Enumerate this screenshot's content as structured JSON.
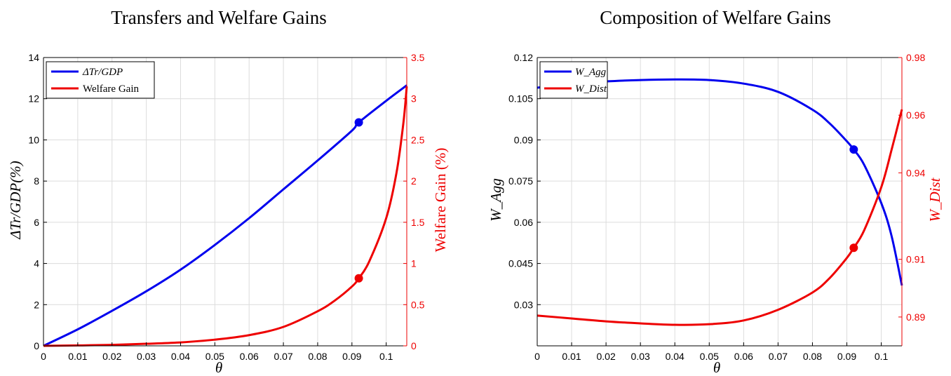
{
  "colors": {
    "blue": "#0000ee",
    "red": "#ee0000",
    "grid": "#dcdcdc",
    "axis": "#000000"
  },
  "chart_data": [
    {
      "type": "line",
      "title": "Transfers and Welfare Gains",
      "xlabel": "θ",
      "ylabel_left": "ΔTr/GDP(%)",
      "ylabel_right": "Welfare Gain (%)",
      "xlim": [
        0,
        0.106
      ],
      "ylim_left": [
        0,
        14
      ],
      "ylim_right": [
        0,
        3.5
      ],
      "xticks": [
        "0",
        "0.01",
        "0.02",
        "0.03",
        "0.04",
        "0.05",
        "0.06",
        "0.07",
        "0.08",
        "0.09",
        "0.1"
      ],
      "yticks_left": [
        "0",
        "2",
        "4",
        "6",
        "8",
        "10",
        "12",
        "14"
      ],
      "yticks_right": [
        "0",
        "0.5",
        "1",
        "1.5",
        "2",
        "2.5",
        "3",
        "3.5"
      ],
      "grid": true,
      "legend_position": "top-left",
      "series": [
        {
          "name": "ΔTr/GDP",
          "axis": "left",
          "color": "#0000ee",
          "x": [
            0,
            0.01,
            0.02,
            0.03,
            0.04,
            0.05,
            0.06,
            0.07,
            0.08,
            0.09,
            0.092,
            0.1,
            0.106
          ],
          "y": [
            0,
            0.8,
            1.7,
            2.65,
            3.7,
            4.9,
            6.2,
            7.6,
            9.0,
            10.45,
            10.85,
            11.9,
            12.65
          ]
        },
        {
          "name": "Welfare Gain",
          "axis": "right",
          "color": "#ee0000",
          "x": [
            0,
            0.01,
            0.02,
            0.03,
            0.04,
            0.05,
            0.06,
            0.07,
            0.08,
            0.085,
            0.09,
            0.092,
            0.095,
            0.1,
            0.103,
            0.105,
            0.106
          ],
          "y": [
            0,
            0.005,
            0.012,
            0.025,
            0.042,
            0.075,
            0.13,
            0.23,
            0.42,
            0.55,
            0.72,
            0.82,
            1.02,
            1.55,
            2.1,
            2.7,
            3.15
          ]
        }
      ],
      "markers": [
        {
          "series": "ΔTr/GDP",
          "x": 0.092,
          "y": 10.85
        },
        {
          "series": "Welfare Gain",
          "x": 0.092,
          "y": 0.82
        }
      ]
    },
    {
      "type": "line",
      "title": "Composition of Welfare Gains",
      "xlabel": "θ",
      "ylabel_left": "W_Agg",
      "ylabel_right": "W_Dist",
      "xlim": [
        0,
        0.106
      ],
      "ylim_left": [
        0.015,
        0.12
      ],
      "ylim_right": [
        0.88,
        0.98
      ],
      "xticks": [
        "0",
        "0.01",
        "0.02",
        "0.03",
        "0.04",
        "0.05",
        "0.06",
        "0.07",
        "0.08",
        "0.09",
        "0.1"
      ],
      "yticks_left": [
        "0.03",
        "0.045",
        "0.06",
        "0.075",
        "0.09",
        "0.105",
        "0.12"
      ],
      "yticks_right": [
        "0.89",
        "0.91",
        "0.94",
        "0.96",
        "0.98"
      ],
      "grid": true,
      "legend_position": "top-left",
      "series": [
        {
          "name": "W_Agg",
          "axis": "left",
          "color": "#0000ee",
          "x": [
            0,
            0.01,
            0.02,
            0.03,
            0.04,
            0.05,
            0.06,
            0.07,
            0.08,
            0.085,
            0.09,
            0.092,
            0.095,
            0.1,
            0.103,
            0.106
          ],
          "y": [
            0.109,
            0.1104,
            0.1113,
            0.1118,
            0.112,
            0.1118,
            0.1105,
            0.1075,
            0.101,
            0.096,
            0.0895,
            0.0865,
            0.081,
            0.067,
            0.055,
            0.037
          ]
        },
        {
          "name": "W_Dist",
          "axis": "right",
          "color": "#ee0000",
          "x": [
            0,
            0.01,
            0.02,
            0.03,
            0.04,
            0.05,
            0.06,
            0.07,
            0.08,
            0.085,
            0.09,
            0.092,
            0.095,
            0.1,
            0.103,
            0.106
          ],
          "y": [
            0.8905,
            0.8895,
            0.8885,
            0.8878,
            0.8873,
            0.8875,
            0.8888,
            0.8925,
            0.8985,
            0.9035,
            0.9105,
            0.914,
            0.92,
            0.935,
            0.948,
            0.962
          ]
        }
      ],
      "markers": [
        {
          "series": "W_Agg",
          "x": 0.092,
          "y": 0.0865
        },
        {
          "series": "W_Dist",
          "x": 0.092,
          "y": 0.914
        }
      ]
    }
  ]
}
